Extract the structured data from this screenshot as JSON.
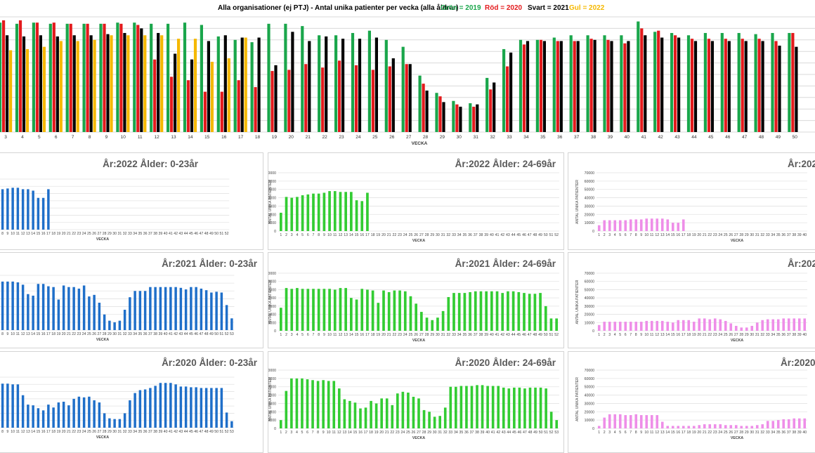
{
  "top_chart": {
    "title": "Alla organisationer (ej PTJ)   -   Antal unika patienter per vecka (alla åldrar)",
    "legend": [
      {
        "text": "Grön = 2019",
        "color": "#1aa64b"
      },
      {
        "text": "Röd = 2020",
        "color": "#e31a1c"
      },
      {
        "text": "Svart = 2021",
        "color": "#000000"
      },
      {
        "text": "Gul = 2022",
        "color": "#f5b800"
      }
    ],
    "xlabel": "VECKA"
  },
  "chart_data": [
    {
      "type": "bar",
      "title": "Alla organisationer (ej PTJ)   -   Antal unika patienter per vecka (alla åldrar)",
      "xlabel": "VECKA",
      "ylabel": "",
      "ylim": [
        0,
        100
      ],
      "categories": [
        3,
        4,
        5,
        6,
        7,
        8,
        9,
        10,
        11,
        12,
        13,
        14,
        15,
        16,
        17,
        18,
        19,
        20,
        21,
        22,
        23,
        24,
        25,
        26,
        27,
        28,
        29,
        30,
        31,
        32,
        33,
        34,
        35,
        36,
        37,
        38,
        39,
        40,
        41,
        42,
        43,
        44,
        45,
        46,
        47,
        48,
        49,
        50
      ],
      "series": [
        {
          "name": "2019",
          "color": "#1aa64b",
          "values": [
            95,
            94,
            95,
            94,
            94,
            94,
            94,
            95,
            95,
            94,
            94,
            95,
            93,
            83,
            80,
            78,
            94,
            94,
            92,
            84,
            84,
            86,
            88,
            80,
            74,
            49,
            34,
            27,
            25,
            47,
            72,
            80,
            80,
            82,
            84,
            84,
            84,
            84,
            96,
            87,
            86,
            84,
            86,
            86,
            86,
            85,
            86,
            86
          ]
        },
        {
          "name": "2020",
          "color": "#e31a1c",
          "values": [
            97,
            97,
            95,
            95,
            94,
            94,
            94,
            94,
            93,
            63,
            48,
            45,
            35,
            35,
            45,
            39,
            53,
            54,
            59,
            56,
            62,
            58,
            54,
            57,
            59,
            42,
            31,
            24,
            22,
            37,
            57,
            76,
            80,
            79,
            79,
            81,
            80,
            77,
            90,
            88,
            84,
            81,
            81,
            81,
            81,
            81,
            79,
            86
          ]
        },
        {
          "name": "2021",
          "color": "#000000",
          "values": [
            84,
            83,
            84,
            83,
            84,
            84,
            85,
            86,
            90,
            86,
            68,
            63,
            79,
            84,
            82,
            82,
            58,
            87,
            79,
            83,
            81,
            81,
            82,
            64,
            59,
            36,
            26,
            22,
            24,
            43,
            69,
            79,
            79,
            79,
            79,
            80,
            79,
            79,
            84,
            82,
            82,
            79,
            79,
            79,
            79,
            79,
            75,
            74
          ]
        },
        {
          "name": "2022",
          "color": "#f5b800",
          "values": [
            71,
            72,
            74,
            79,
            79,
            80,
            84,
            84,
            84,
            84,
            81,
            81,
            61,
            64,
            82,
            null,
            null,
            null,
            null,
            null,
            null,
            null,
            null,
            null,
            null,
            null,
            null,
            null,
            null,
            null,
            null,
            null,
            null,
            null,
            null,
            null,
            null,
            null,
            null,
            null,
            null,
            null,
            null,
            null,
            null,
            null,
            null,
            null
          ]
        }
      ]
    },
    {
      "type": "bar",
      "title": "År:2022   Ålder: 0-23år",
      "xlabel": "VECKA",
      "color": "#1f6fc9",
      "ylim": [
        0,
        70000
      ],
      "categories": [
        8,
        9,
        10,
        11,
        12,
        13,
        14,
        15,
        16,
        17,
        18,
        19,
        20,
        21,
        22,
        23,
        24,
        25,
        26,
        27,
        28,
        29,
        30,
        31,
        32,
        33,
        34,
        35,
        36,
        37,
        38,
        39,
        40,
        41,
        42,
        43,
        44,
        45,
        46,
        47,
        48,
        49,
        50,
        51,
        52
      ],
      "values": [
        56000,
        57000,
        58000,
        58000,
        56000,
        56000,
        54000,
        44000,
        44000,
        56000,
        null,
        null,
        null,
        null,
        null,
        null,
        null,
        null,
        null,
        null,
        null,
        null,
        null,
        null,
        null,
        null,
        null,
        null,
        null,
        null,
        null,
        null,
        null,
        null,
        null,
        null,
        null,
        null,
        null,
        null,
        null,
        null,
        null,
        null,
        null
      ]
    },
    {
      "type": "bar",
      "title": "År:2022   Ålder: 24-69år",
      "xlabel": "VECKA",
      "ylabel": "ANTAL UNIKA PATIENTER",
      "color": "#33cc33",
      "ylim": [
        0,
        70000
      ],
      "yticks": [
        0,
        10000,
        20000,
        30000,
        40000,
        50000,
        60000,
        70000
      ],
      "categories": [
        1,
        2,
        3,
        4,
        5,
        6,
        7,
        8,
        9,
        10,
        11,
        12,
        13,
        14,
        15,
        16,
        17,
        18,
        19,
        20,
        21,
        22,
        23,
        24,
        25,
        26,
        27,
        28,
        29,
        30,
        31,
        32,
        33,
        34,
        35,
        36,
        37,
        38,
        39,
        40,
        41,
        42,
        43,
        44,
        45,
        46,
        47,
        48,
        49,
        50,
        51,
        52
      ],
      "values": [
        22000,
        41000,
        40000,
        41000,
        43000,
        44000,
        45000,
        45000,
        46000,
        48000,
        48000,
        47000,
        47000,
        47000,
        37000,
        36000,
        46000,
        null,
        null,
        null,
        null,
        null,
        null,
        null,
        null,
        null,
        null,
        null,
        null,
        null,
        null,
        null,
        null,
        null,
        null,
        null,
        null,
        null,
        null,
        null,
        null,
        null,
        null,
        null,
        null,
        null,
        null,
        null,
        null,
        null,
        null,
        null
      ]
    },
    {
      "type": "bar",
      "title": "År:202",
      "xlabel": "VECKA",
      "ylabel": "ANTAL UNIKA PATIENTER",
      "color": "#ee8ee8",
      "ylim": [
        0,
        70000
      ],
      "yticks": [
        0,
        10000,
        20000,
        30000,
        40000,
        50000,
        60000,
        70000
      ],
      "categories": [
        1,
        2,
        3,
        4,
        5,
        6,
        7,
        8,
        9,
        10,
        11,
        12,
        13,
        14,
        15,
        16,
        17,
        18,
        19,
        20,
        21,
        22,
        23,
        24,
        25,
        26,
        27,
        28,
        29,
        30,
        31,
        32,
        33,
        34,
        35,
        36,
        37,
        38,
        39,
        40
      ],
      "values": [
        7000,
        13000,
        13000,
        13000,
        13000,
        13000,
        14000,
        14000,
        14000,
        15000,
        15000,
        15000,
        15000,
        14000,
        10000,
        10000,
        14000,
        null,
        null,
        null,
        null,
        null,
        null,
        null,
        null,
        null,
        null,
        null,
        null,
        null,
        null,
        null,
        null,
        null,
        null,
        null,
        null,
        null,
        null,
        null
      ]
    },
    {
      "type": "bar",
      "title": "År:2021   Ålder: 0-23år",
      "xlabel": "VECKA",
      "color": "#1f6fc9",
      "ylim": [
        0,
        70000
      ],
      "categories": [
        8,
        9,
        10,
        11,
        12,
        13,
        14,
        15,
        16,
        17,
        18,
        19,
        20,
        21,
        22,
        23,
        24,
        25,
        26,
        27,
        28,
        29,
        30,
        31,
        32,
        33,
        34,
        35,
        36,
        37,
        38,
        39,
        40,
        41,
        42,
        43,
        44,
        45,
        46,
        47,
        48,
        49,
        50,
        51,
        52,
        53
      ],
      "values": [
        62000,
        62000,
        62000,
        61000,
        58000,
        46000,
        44000,
        59000,
        59000,
        56000,
        55000,
        39000,
        57000,
        55000,
        55000,
        53000,
        57000,
        43000,
        45000,
        35000,
        20000,
        12000,
        10000,
        12000,
        26000,
        42000,
        50000,
        50000,
        50000,
        55000,
        55000,
        55000,
        55000,
        55000,
        55000,
        54000,
        52000,
        55000,
        55000,
        53000,
        51000,
        48000,
        49000,
        48000,
        32000,
        15000
      ]
    },
    {
      "type": "bar",
      "title": "År:2021   Ålder: 24-69år",
      "xlabel": "VECKA",
      "ylabel": "ANTAL UNIKA PATIENTER",
      "color": "#33cc33",
      "ylim": [
        0,
        70000
      ],
      "yticks": [
        0,
        10000,
        20000,
        30000,
        40000,
        50000,
        60000,
        70000
      ],
      "categories": [
        1,
        2,
        3,
        4,
        5,
        6,
        7,
        8,
        9,
        10,
        11,
        12,
        13,
        14,
        15,
        16,
        17,
        18,
        19,
        20,
        21,
        22,
        23,
        24,
        25,
        26,
        27,
        28,
        29,
        30,
        31,
        32,
        33,
        34,
        35,
        36,
        37,
        38,
        39,
        40,
        41,
        42,
        43,
        44,
        45,
        46,
        47,
        48,
        49,
        50,
        51,
        52
      ],
      "values": [
        28000,
        52000,
        51000,
        52000,
        51000,
        51000,
        51000,
        51000,
        51000,
        51000,
        50000,
        52000,
        52000,
        40000,
        38000,
        51000,
        50000,
        49000,
        34000,
        49000,
        47000,
        49000,
        49000,
        48000,
        42000,
        33000,
        23000,
        16000,
        13000,
        16000,
        24000,
        41000,
        46000,
        46000,
        46000,
        47000,
        48000,
        48000,
        48000,
        48000,
        48000,
        46000,
        48000,
        48000,
        47000,
        46000,
        45000,
        45000,
        46000,
        30000,
        15000,
        15000
      ]
    },
    {
      "type": "bar",
      "title": "År:202",
      "xlabel": "VECKA",
      "ylabel": "ANTAL UNIKA PATIENTER",
      "color": "#ee8ee8",
      "ylim": [
        0,
        70000
      ],
      "yticks": [
        0,
        10000,
        20000,
        30000,
        40000,
        50000,
        60000,
        70000
      ],
      "categories": [
        1,
        2,
        3,
        4,
        5,
        6,
        7,
        8,
        9,
        10,
        11,
        12,
        13,
        14,
        15,
        16,
        17,
        18,
        19,
        20,
        21,
        22,
        23,
        24,
        25,
        26,
        27,
        28,
        29,
        30,
        31,
        32,
        33,
        34,
        35,
        36,
        37,
        38,
        39,
        40
      ],
      "values": [
        7000,
        11000,
        11000,
        11000,
        11000,
        11000,
        11000,
        11000,
        11000,
        12000,
        12000,
        12000,
        12000,
        11000,
        10000,
        13000,
        13000,
        13000,
        11000,
        15000,
        15000,
        14000,
        15000,
        14000,
        12000,
        9000,
        6000,
        4000,
        4000,
        6000,
        10000,
        13000,
        14000,
        14000,
        14000,
        15000,
        15000,
        15000,
        15000,
        15000
      ]
    },
    {
      "type": "bar",
      "title": "År:2020   Ålder: 0-23år",
      "xlabel": "VECKA",
      "color": "#1f6fc9",
      "ylim": [
        0,
        70000
      ],
      "categories": [
        8,
        9,
        10,
        11,
        12,
        13,
        14,
        15,
        16,
        17,
        18,
        19,
        20,
        21,
        22,
        23,
        24,
        25,
        26,
        27,
        28,
        29,
        30,
        31,
        32,
        33,
        34,
        35,
        36,
        37,
        38,
        39,
        40,
        41,
        42,
        43,
        44,
        45,
        46,
        47,
        48,
        49,
        50,
        51,
        52,
        53
      ],
      "values": [
        61000,
        61000,
        60000,
        60000,
        45000,
        32000,
        31000,
        27000,
        24000,
        32000,
        28000,
        35000,
        36000,
        31000,
        40000,
        43000,
        42000,
        43000,
        38000,
        35000,
        20000,
        13000,
        12000,
        12000,
        20000,
        38000,
        48000,
        52000,
        53000,
        55000,
        58000,
        62000,
        62000,
        62000,
        60000,
        57000,
        57000,
        56000,
        56000,
        55000,
        55000,
        55000,
        55000,
        55000,
        21000,
        9000
      ]
    },
    {
      "type": "bar",
      "title": "År:2020   Ålder: 24-69år",
      "xlabel": "VECKA",
      "ylabel": "ANTAL UNIKA PATIENTER",
      "color": "#33cc33",
      "ylim": [
        0,
        70000
      ],
      "yticks": [
        0,
        10000,
        20000,
        30000,
        40000,
        50000,
        60000,
        70000
      ],
      "categories": [
        1,
        2,
        3,
        4,
        5,
        6,
        7,
        8,
        9,
        10,
        11,
        12,
        13,
        14,
        15,
        16,
        17,
        18,
        19,
        20,
        21,
        22,
        23,
        24,
        25,
        26,
        27,
        28,
        29,
        30,
        31,
        32,
        33,
        34,
        35,
        36,
        37,
        38,
        39,
        40,
        41,
        42,
        43,
        44,
        45,
        46,
        47,
        48,
        49,
        50,
        51,
        52,
        53
      ],
      "values": [
        10000,
        45000,
        60000,
        60000,
        60000,
        59000,
        58000,
        57000,
        58000,
        57000,
        57000,
        48000,
        35000,
        33000,
        31000,
        24000,
        25000,
        33000,
        30000,
        36000,
        36000,
        28000,
        42000,
        44000,
        43000,
        38000,
        36000,
        22000,
        20000,
        14000,
        15000,
        25000,
        50000,
        50000,
        51000,
        51000,
        51000,
        52000,
        52000,
        51000,
        51000,
        51000,
        49000,
        48000,
        49000,
        49000,
        48000,
        49000,
        49000,
        49000,
        48000,
        20000,
        10000
      ]
    },
    {
      "type": "bar",
      "title": "År:2020",
      "xlabel": "VECKA",
      "ylabel": "ANTAL UNIKA PATIENTER",
      "color": "#ee8ee8",
      "ylim": [
        0,
        70000
      ],
      "yticks": [
        0,
        10000,
        20000,
        30000,
        40000,
        50000,
        60000,
        70000
      ],
      "categories": [
        1,
        2,
        3,
        4,
        5,
        6,
        7,
        8,
        9,
        10,
        11,
        12,
        13,
        14,
        15,
        16,
        17,
        18,
        19,
        20,
        21,
        22,
        23,
        24,
        25,
        26,
        27,
        28,
        29,
        30,
        31,
        32,
        33,
        34,
        35,
        36,
        37,
        38,
        39,
        40
      ],
      "values": [
        3000,
        13000,
        17000,
        17000,
        17000,
        16000,
        16000,
        17000,
        16000,
        16000,
        16000,
        16000,
        8000,
        3000,
        3000,
        3000,
        3000,
        3000,
        3000,
        4000,
        5000,
        5000,
        5000,
        5000,
        4000,
        4000,
        4000,
        3000,
        3000,
        3000,
        4000,
        5000,
        9000,
        9000,
        10000,
        11000,
        11000,
        12000,
        12000,
        12000
      ]
    }
  ]
}
